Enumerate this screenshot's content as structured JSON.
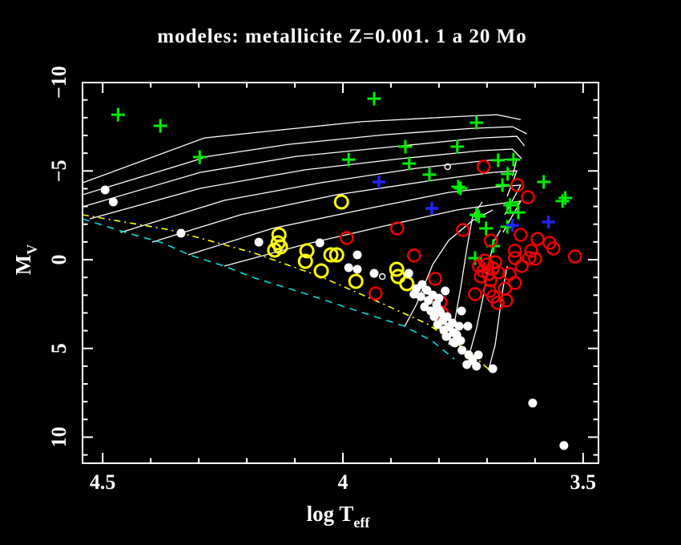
{
  "window": {
    "background": "#000000"
  },
  "title": "modeles: metallicite Z=0.001. 1 a 20 Mo",
  "chart_data": {
    "type": "scatter",
    "title": "modeles: metallicite Z=0.001. 1 a 20 Mo",
    "xlabel": "log Teff",
    "xlabel_main": "log T",
    "xlabel_sub": "eff",
    "ylabel": "Mv",
    "ylabel_main": "M",
    "ylabel_sub": "V",
    "grid": false,
    "legend": "none",
    "x_axis": {
      "range": [
        4.542,
        3.468
      ],
      "reversed": true,
      "major_ticks": [
        4.5,
        4.0,
        3.5
      ],
      "major_labels": [
        "4.5",
        "4",
        "3.5"
      ],
      "minor_step": 0.1
    },
    "y_axis": {
      "range": [
        -9.98,
        11.47
      ],
      "increases_downward": true,
      "major_ticks": [
        -10,
        -5,
        0,
        5,
        10
      ],
      "major_labels": [
        "−10",
        "−5",
        "0",
        "5",
        "10"
      ],
      "minor_step": 1
    },
    "colors": {
      "frame": "#ffffff",
      "tracks": "#ffffff",
      "zams": "#00dddd",
      "dashdot": "#ffff00",
      "green": "#00ee00",
      "blue": "#2222ff",
      "red": "#ee0000",
      "yellow": "#ffff00",
      "white": "#ffffff"
    },
    "reference_lines": [
      {
        "name": "zams-dashed-line",
        "color": "#00dddd",
        "style": "dashed",
        "points": [
          [
            4.542,
            -2.3
          ],
          [
            4.447,
            -1.49
          ],
          [
            4.375,
            -0.95
          ],
          [
            4.32,
            -0.27
          ],
          [
            4.247,
            0.36
          ],
          [
            4.183,
            1.04
          ],
          [
            4.08,
            1.9
          ],
          [
            3.98,
            2.8
          ],
          [
            3.872,
            3.75
          ],
          [
            3.813,
            4.6
          ],
          [
            3.768,
            5.6
          ]
        ]
      },
      {
        "name": "yellow-dashdot-line",
        "color": "#ffff00",
        "style": "dashdot",
        "points": [
          [
            4.542,
            -2.53
          ],
          [
            4.358,
            -1.67
          ],
          [
            4.183,
            -0.36
          ],
          [
            4.047,
            0.95
          ],
          [
            3.925,
            2.39
          ],
          [
            3.825,
            3.61
          ],
          [
            3.735,
            5.24
          ],
          [
            3.685,
            6.46
          ]
        ]
      }
    ],
    "tracks": {
      "name": "evolutionary-tracks",
      "color": "#ffffff",
      "lines": [
        [
          [
            4.542,
            -4.33
          ],
          [
            4.288,
            -6.86
          ],
          [
            4.13,
            -7.31
          ],
          [
            3.963,
            -7.77
          ],
          [
            3.78,
            -8.04
          ],
          [
            3.68,
            -8.17
          ],
          [
            3.63,
            -7.9
          ]
        ],
        [
          [
            4.542,
            -3.66
          ],
          [
            4.28,
            -5.82
          ],
          [
            4.113,
            -6.5
          ],
          [
            3.913,
            -7.04
          ],
          [
            3.73,
            -7.4
          ],
          [
            3.647,
            -7.49
          ],
          [
            3.617,
            -7.09
          ]
        ],
        [
          [
            4.542,
            -2.98
          ],
          [
            4.297,
            -4.92
          ],
          [
            4.097,
            -5.82
          ],
          [
            3.88,
            -6.41
          ],
          [
            3.713,
            -6.86
          ],
          [
            3.638,
            -6.95
          ],
          [
            3.622,
            -6.41
          ]
        ],
        [
          [
            4.527,
            -2.3
          ],
          [
            4.297,
            -4.02
          ],
          [
            4.08,
            -5.06
          ],
          [
            3.88,
            -5.69
          ],
          [
            3.713,
            -6.14
          ],
          [
            3.647,
            -6.23
          ],
          [
            3.628,
            -5.69
          ]
        ],
        [
          [
            4.463,
            -1.53
          ],
          [
            4.247,
            -3.34
          ],
          [
            4.047,
            -4.33
          ],
          [
            3.847,
            -5.15
          ],
          [
            3.697,
            -5.6
          ],
          [
            3.638,
            -5.69
          ],
          [
            3.647,
            -4.7
          ]
        ],
        [
          [
            4.397,
            -0.99
          ],
          [
            4.213,
            -2.53
          ],
          [
            4.013,
            -3.66
          ],
          [
            3.813,
            -4.47
          ],
          [
            3.688,
            -4.92
          ],
          [
            3.638,
            -5.01
          ],
          [
            3.658,
            -3.57
          ]
        ],
        [
          [
            4.322,
            -0.27
          ],
          [
            4.147,
            -1.76
          ],
          [
            3.963,
            -2.8
          ],
          [
            3.78,
            -3.79
          ],
          [
            3.677,
            -4.11
          ],
          [
            3.63,
            -4.2
          ],
          [
            3.663,
            -2.53
          ]
        ],
        [
          [
            4.247,
            0.36
          ],
          [
            4.08,
            -0.86
          ],
          [
            3.913,
            -1.9
          ],
          [
            3.763,
            -2.8
          ],
          [
            3.672,
            -3.16
          ],
          [
            3.63,
            -3.3
          ],
          [
            3.667,
            -1.53
          ]
        ],
        [
          [
            3.872,
            3.79
          ],
          [
            3.847,
            2.53
          ],
          [
            3.813,
            0.27
          ],
          [
            3.78,
            -1.08
          ],
          [
            3.73,
            -2.21
          ],
          [
            3.688,
            -2.8
          ]
        ],
        [
          [
            3.78,
            4.79
          ],
          [
            3.767,
            3.43
          ],
          [
            3.755,
            1.63
          ],
          [
            3.742,
            -0.63
          ],
          [
            3.73,
            -2.44
          ],
          [
            3.71,
            -3.25
          ]
        ],
        [
          [
            3.738,
            5.46
          ],
          [
            3.722,
            3.88
          ],
          [
            3.708,
            2.08
          ],
          [
            3.697,
            0.27
          ],
          [
            3.685,
            -1.08
          ],
          [
            3.672,
            -1.67
          ]
        ],
        [
          [
            3.697,
            6.23
          ],
          [
            3.683,
            4.79
          ],
          [
            3.675,
            3.21
          ],
          [
            3.667,
            1.63
          ],
          [
            3.658,
            0.36
          ]
        ]
      ]
    },
    "series": [
      {
        "name": "green-plus-stars",
        "marker": "plus",
        "color": "#00ee00",
        "size": 8.5,
        "stroke": 3,
        "points": [
          [
            4.468,
            -8.17
          ],
          [
            4.38,
            -7.54
          ],
          [
            4.298,
            -5.78
          ],
          [
            3.935,
            -9.07
          ],
          [
            3.722,
            -7.72
          ],
          [
            3.87,
            -6.37
          ],
          [
            3.762,
            -6.37
          ],
          [
            3.988,
            -5.64
          ],
          [
            3.862,
            -5.42
          ],
          [
            3.677,
            -5.6
          ],
          [
            3.645,
            -5.64
          ],
          [
            3.82,
            -4.79
          ],
          [
            3.657,
            -4.83
          ],
          [
            3.582,
            -4.38
          ],
          [
            3.668,
            -4.2
          ],
          [
            3.76,
            -4.11
          ],
          [
            3.755,
            -4.02
          ],
          [
            3.537,
            -3.48
          ],
          [
            3.652,
            -3.07
          ],
          [
            3.543,
            -3.3
          ],
          [
            3.722,
            -2.53
          ],
          [
            3.717,
            -2.44
          ],
          [
            3.635,
            -2.66
          ],
          [
            3.702,
            -1.76
          ],
          [
            3.658,
            -1.85
          ],
          [
            3.687,
            -0.77
          ],
          [
            3.725,
            -0.09
          ]
        ]
      },
      {
        "name": "blue-plus-stars",
        "marker": "plus",
        "color": "#2222ff",
        "size": 8,
        "stroke": 3.5,
        "points": [
          [
            3.925,
            -4.38
          ],
          [
            3.815,
            -2.89
          ],
          [
            3.647,
            -1.94
          ],
          [
            3.572,
            -2.12
          ]
        ]
      },
      {
        "name": "green-square-star",
        "marker": "square-open",
        "color": "#00ee00",
        "size": 6.5,
        "stroke": 2.5,
        "points": [
          [
            3.647,
            -2.93
          ]
        ]
      },
      {
        "name": "red-open-circles",
        "marker": "circle-open",
        "color": "#ee0000",
        "size": 7.5,
        "stroke": 2.5,
        "points": [
          [
            3.992,
            -1.22
          ],
          [
            3.887,
            -1.76
          ],
          [
            3.852,
            -0.23
          ],
          [
            3.932,
            1.9
          ],
          [
            3.707,
            -5.24
          ],
          [
            3.637,
            -4.2
          ],
          [
            3.615,
            -3.52
          ],
          [
            3.808,
            1.08
          ],
          [
            3.75,
            -1.67
          ],
          [
            3.692,
            -1.08
          ],
          [
            3.63,
            -1.4
          ],
          [
            3.595,
            -1.17
          ],
          [
            3.57,
            -0.95
          ],
          [
            3.562,
            -0.63
          ],
          [
            3.642,
            -0.5
          ],
          [
            3.608,
            -0.5
          ],
          [
            3.517,
            -0.18
          ],
          [
            3.612,
            -0.09
          ],
          [
            3.6,
            -0.05
          ],
          [
            3.642,
            -0.09
          ],
          [
            3.628,
            0.36
          ],
          [
            3.653,
            0.81
          ],
          [
            3.663,
            1.63
          ],
          [
            3.687,
            2.08
          ],
          [
            3.678,
            2.44
          ],
          [
            3.725,
            1.94
          ],
          [
            3.695,
            1.76
          ],
          [
            3.795,
            2.98
          ],
          [
            3.792,
            3.11
          ],
          [
            3.797,
            2.39
          ],
          [
            3.7,
            0.27
          ],
          [
            3.688,
            0.5
          ],
          [
            3.697,
            0.81
          ],
          [
            3.708,
            0.63
          ],
          [
            3.683,
            0.14
          ],
          [
            3.705,
            0.05
          ],
          [
            3.693,
            1.17
          ],
          [
            3.717,
            0.36
          ],
          [
            3.677,
            0.72
          ],
          [
            3.713,
            0.95
          ],
          [
            3.66,
            2.3
          ],
          [
            3.642,
            1.31
          ]
        ]
      },
      {
        "name": "yellow-open-circles",
        "marker": "circle-open",
        "color": "#ffff00",
        "size": 8,
        "stroke": 3,
        "points": [
          [
            4.003,
            -3.25
          ],
          [
            4.133,
            -1.4
          ],
          [
            4.135,
            -0.95
          ],
          [
            4.13,
            -0.72
          ],
          [
            4.142,
            -0.54
          ],
          [
            4.075,
            -0.5
          ],
          [
            4.025,
            -0.27
          ],
          [
            4.013,
            -0.27
          ],
          [
            4.078,
            0.09
          ],
          [
            4.045,
            0.63
          ],
          [
            3.888,
            0.54
          ],
          [
            3.885,
            0.95
          ],
          [
            3.973,
            1.22
          ],
          [
            3.867,
            1.35
          ]
        ]
      },
      {
        "name": "white-filled-dots",
        "marker": "dot",
        "color": "#ffffff",
        "size": 5.5,
        "stroke": 0,
        "points": [
          [
            4.495,
            -3.93
          ],
          [
            4.478,
            -3.25
          ],
          [
            4.337,
            -1.49
          ],
          [
            4.175,
            -0.99
          ],
          [
            4.048,
            -0.95
          ],
          [
            3.97,
            -0.27
          ],
          [
            3.988,
            0.45
          ],
          [
            3.97,
            0.54
          ],
          [
            3.935,
            0.77
          ],
          [
            3.863,
            0.77
          ],
          [
            3.852,
            1.94
          ],
          [
            3.787,
            1.76
          ],
          [
            3.8,
            2.84
          ],
          [
            3.753,
            2.89
          ],
          [
            3.74,
            3.75
          ],
          [
            3.758,
            3.75
          ],
          [
            3.605,
            8.08
          ],
          [
            3.54,
            10.47
          ],
          [
            3.688,
            6.14
          ],
          [
            3.847,
            1.63
          ],
          [
            3.835,
            1.4
          ],
          [
            3.825,
            1.72
          ],
          [
            3.838,
            2.08
          ],
          [
            3.822,
            2.3
          ],
          [
            3.813,
            1.99
          ],
          [
            3.83,
            2.66
          ],
          [
            3.817,
            2.89
          ],
          [
            3.805,
            2.53
          ],
          [
            3.8,
            2.17
          ],
          [
            3.81,
            3.21
          ],
          [
            3.797,
            2.98
          ],
          [
            3.792,
            3.43
          ],
          [
            3.783,
            3.21
          ],
          [
            3.803,
            3.66
          ],
          [
            3.79,
            3.97
          ],
          [
            3.78,
            3.79
          ],
          [
            3.772,
            3.57
          ],
          [
            3.785,
            4.33
          ],
          [
            3.77,
            4.11
          ],
          [
            3.763,
            4.24
          ],
          [
            3.767,
            4.69
          ],
          [
            3.755,
            4.56
          ],
          [
            3.77,
            4.65
          ],
          [
            3.738,
            5.37
          ],
          [
            3.718,
            5.37
          ],
          [
            3.742,
            5.91
          ],
          [
            3.722,
            6.0
          ],
          [
            3.752,
            5.1
          ],
          [
            3.73,
            5.69
          ]
        ]
      },
      {
        "name": "white-small-open-circles",
        "marker": "circle-open",
        "color": "#ffffff",
        "size": 3.5,
        "stroke": 1.5,
        "points": [
          [
            3.782,
            -5.24
          ],
          [
            3.918,
            0.95
          ]
        ]
      }
    ]
  }
}
